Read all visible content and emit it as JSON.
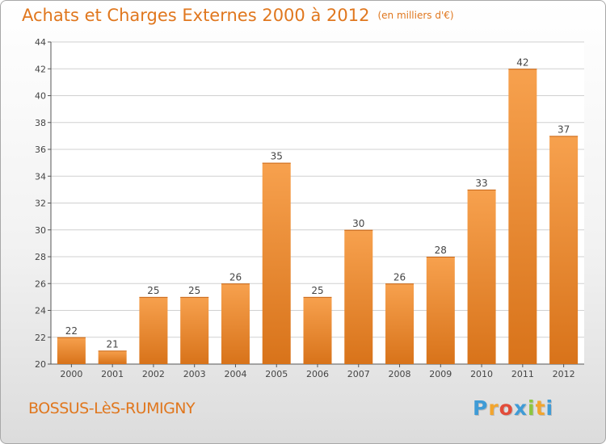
{
  "header": {
    "title": "Achats et Charges Externes 2000 à 2012",
    "unit": "(en milliers d'€)"
  },
  "footer": {
    "commune": "BOSSUS-LèS-RUMIGNY",
    "logo_letters": [
      {
        "ch": "P",
        "color": "#3f9bd6"
      },
      {
        "ch": "r",
        "color": "#f2a52e"
      },
      {
        "ch": "o",
        "color": "#e24c3a"
      },
      {
        "ch": "x",
        "color": "#3f9bd6"
      },
      {
        "ch": "i",
        "color": "#8cc63f"
      },
      {
        "ch": "t",
        "color": "#f2a52e"
      },
      {
        "ch": "i",
        "color": "#3f9bd6"
      }
    ]
  },
  "colors": {
    "title": "#e0771e",
    "bar_top": "#f7a14e",
    "bar_bottom": "#d8731a",
    "grid": "#d0d0d0",
    "axis": "#555555",
    "text": "#444444"
  },
  "chart_data": {
    "type": "bar",
    "title": "Achats et Charges Externes 2000 à 2012",
    "subtitle": "(en milliers d'€)",
    "categories": [
      "2000",
      "2001",
      "2002",
      "2003",
      "2004",
      "2005",
      "2006",
      "2007",
      "2008",
      "2009",
      "2010",
      "2011",
      "2012"
    ],
    "values": [
      22,
      21,
      25,
      25,
      26,
      35,
      25,
      30,
      26,
      28,
      33,
      42,
      37
    ],
    "ylim": [
      20,
      44
    ],
    "yticks": [
      20,
      22,
      24,
      26,
      28,
      30,
      32,
      34,
      36,
      38,
      40,
      42,
      44
    ],
    "grid": true,
    "data_labels": true
  }
}
